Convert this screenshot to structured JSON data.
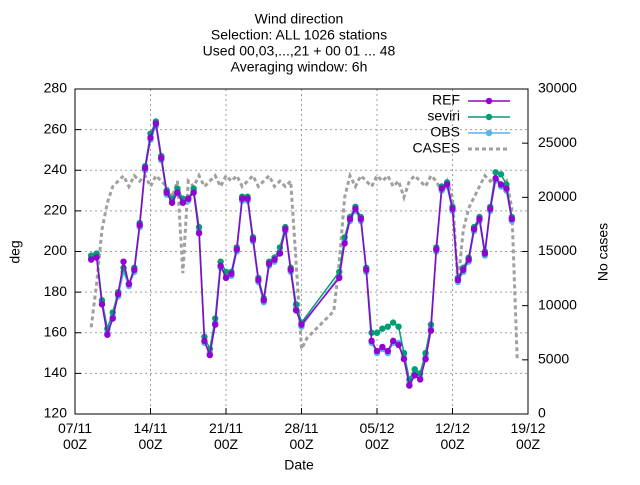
{
  "chart_data": {
    "type": "line",
    "title": [
      "Wind direction",
      "Selection: ALL   1026 stations",
      "Used 00,03,...,21 + 00 01 ... 48",
      "Averaging window:  6h"
    ],
    "xlabel": "Date",
    "ylabel": "deg",
    "y2label": "No cases",
    "xlim": [
      0,
      42
    ],
    "xticks": [
      {
        "value": 0,
        "label": "07/11\n00Z"
      },
      {
        "value": 7,
        "label": "14/11\n00Z"
      },
      {
        "value": 14,
        "label": "21/11\n00Z"
      },
      {
        "value": 21,
        "label": "28/11\n00Z"
      },
      {
        "value": 28,
        "label": "05/12\n00Z"
      },
      {
        "value": 35,
        "label": "12/12\n00Z"
      },
      {
        "value": 42,
        "label": "19/12\n00Z"
      }
    ],
    "ylim": [
      120,
      280
    ],
    "yticks": [
      120,
      140,
      160,
      180,
      200,
      220,
      240,
      260,
      280
    ],
    "y2lim": [
      0,
      30000
    ],
    "y2ticks": [
      0,
      5000,
      10000,
      15000,
      20000,
      25000,
      30000
    ],
    "grid": true,
    "legend": "top-right",
    "series": [
      {
        "name": "REF",
        "color": "#9400d3",
        "markers": true,
        "x": [
          1.5,
          2,
          2.5,
          3,
          3.5,
          4,
          4.5,
          5,
          5.5,
          6,
          6.5,
          7,
          7.5,
          8,
          8.5,
          9,
          9.5,
          10,
          10.5,
          11,
          11.5,
          12,
          12.5,
          13,
          13.5,
          14,
          14.5,
          15,
          15.5,
          16,
          16.5,
          17,
          17.5,
          18,
          18.5,
          19,
          19.5,
          20,
          20.5,
          21,
          24.5,
          25,
          25.5,
          26,
          26.5,
          27,
          27.5,
          28,
          28.5,
          29,
          29.5,
          30,
          30.5,
          31,
          31.5,
          32,
          32.5,
          33,
          33.5,
          34,
          34.5,
          35,
          35.5,
          36,
          36.5,
          37,
          37.5,
          38,
          38.5,
          39,
          39.5,
          40,
          40.5
        ],
        "values": [
          196,
          197,
          174,
          159,
          167,
          179,
          195,
          184,
          191,
          213,
          241,
          256,
          263,
          246,
          229,
          224,
          229,
          224,
          226,
          229,
          209,
          156,
          149,
          164,
          193,
          187,
          189,
          201,
          226,
          226,
          206,
          186,
          176,
          194,
          196,
          199,
          211,
          191,
          171,
          164,
          187,
          204,
          216,
          221,
          216,
          191,
          156,
          151,
          153,
          151,
          156,
          154,
          147,
          134,
          139,
          137,
          147,
          161,
          201,
          231,
          233,
          221,
          186,
          191,
          196,
          211,
          216,
          199,
          221,
          236,
          233,
          231,
          216
        ]
      },
      {
        "name": "seviri",
        "color": "#009e73",
        "markers": true,
        "x": [
          1.5,
          2,
          2.5,
          3,
          3.5,
          4,
          4.5,
          5,
          5.5,
          6,
          6.5,
          7,
          7.5,
          8,
          8.5,
          9,
          9.5,
          10,
          10.5,
          11,
          11.5,
          12,
          12.5,
          13,
          13.5,
          14,
          14.5,
          15,
          15.5,
          16,
          16.5,
          17,
          17.5,
          18,
          18.5,
          19,
          19.5,
          20,
          20.5,
          21,
          24.5,
          25,
          25.5,
          26,
          26.5,
          27,
          27.5,
          28,
          28.5,
          29,
          29.5,
          30,
          30.5,
          31,
          31.5,
          32,
          32.5,
          33,
          33.5,
          34,
          34.5,
          35,
          35.5,
          36,
          36.5,
          37,
          37.5,
          38,
          38.5,
          39,
          39.5,
          40,
          40.5
        ],
        "values": [
          198,
          199,
          176,
          162,
          170,
          180,
          192,
          184,
          192,
          214,
          242,
          258,
          264,
          247,
          230,
          226,
          231,
          226,
          226,
          231,
          212,
          158,
          152,
          167,
          195,
          190,
          190,
          202,
          227,
          227,
          207,
          187,
          177,
          195,
          197,
          202,
          212,
          192,
          174,
          165,
          190,
          207,
          217,
          222,
          217,
          192,
          160,
          160,
          162,
          163,
          165,
          163,
          150,
          137,
          142,
          140,
          150,
          164,
          202,
          232,
          234,
          222,
          187,
          192,
          197,
          212,
          217,
          200,
          222,
          239,
          238,
          233,
          217
        ]
      },
      {
        "name": "OBS",
        "color": "#56b4e9",
        "markers": true,
        "x": [
          1.5,
          2,
          2.5,
          3,
          3.5,
          4,
          4.5,
          5,
          5.5,
          6,
          6.5,
          7,
          7.5,
          8,
          8.5,
          9,
          9.5,
          10,
          10.5,
          11,
          11.5,
          12,
          12.5,
          13,
          13.5,
          14,
          14.5,
          15,
          15.5,
          16,
          16.5,
          17,
          17.5,
          18,
          18.5,
          19,
          19.5,
          20,
          20.5,
          21,
          24.5,
          25,
          25.5,
          26,
          26.5,
          27,
          27.5,
          28,
          28.5,
          29,
          29.5,
          30,
          30.5,
          31,
          31.5,
          32,
          32.5,
          33,
          33.5,
          34,
          34.5,
          35,
          35.5,
          36,
          36.5,
          37,
          37.5,
          38,
          38.5,
          39,
          39.5,
          40,
          40.5
        ],
        "values": [
          197,
          198,
          175,
          160,
          168,
          178,
          190,
          183,
          190,
          212,
          240,
          255,
          262,
          245,
          228,
          225,
          230,
          225,
          225,
          230,
          210,
          155,
          150,
          165,
          192,
          188,
          188,
          200,
          225,
          225,
          205,
          185,
          175,
          193,
          195,
          200,
          210,
          190,
          172,
          163,
          188,
          205,
          215,
          220,
          215,
          190,
          155,
          150,
          152,
          150,
          155,
          155,
          148,
          135,
          140,
          138,
          148,
          162,
          200,
          230,
          232,
          220,
          185,
          190,
          195,
          210,
          215,
          198,
          220,
          235,
          232,
          230,
          215
        ]
      },
      {
        "name": "CASES",
        "color": "#a0a0a0",
        "axis": "y2",
        "dashed": true,
        "x": [
          1.5,
          2,
          2.5,
          3,
          3.5,
          4,
          4.5,
          5,
          5.5,
          6,
          6.5,
          7,
          7.5,
          8,
          8.5,
          9,
          9.5,
          10,
          10.5,
          11,
          11.5,
          12,
          12.5,
          13,
          13.5,
          14,
          14.5,
          15,
          15.5,
          16,
          16.5,
          17,
          17.5,
          18,
          18.5,
          19,
          19.5,
          20,
          20.5,
          21,
          21.5,
          22,
          22.5,
          23,
          23.5,
          24,
          24.5,
          25,
          25.5,
          26,
          26.5,
          27,
          27.5,
          28,
          28.5,
          29,
          29.5,
          30,
          30.5,
          31,
          31.5,
          32,
          32.5,
          33,
          33.5,
          34,
          34.5,
          35,
          35.5,
          36,
          36.5,
          37,
          37.5,
          38,
          38.5,
          39,
          39.5,
          40,
          40.5,
          41
        ],
        "values": [
          8000,
          12000,
          17000,
          19500,
          21000,
          21500,
          22000,
          21000,
          22000,
          21500,
          22000,
          21000,
          22000,
          21500,
          21000,
          20000,
          21500,
          13000,
          21500,
          21000,
          22000,
          21000,
          21500,
          22000,
          21000,
          22000,
          21500,
          22000,
          21000,
          21500,
          22000,
          21000,
          21500,
          22000,
          21000,
          21500,
          21000,
          21500,
          14000,
          6000,
          7000,
          7500,
          8000,
          8500,
          9000,
          9500,
          14000,
          20000,
          22000,
          21000,
          22000,
          21500,
          21000,
          22000,
          21500,
          22000,
          21000,
          21500,
          20000,
          21500,
          22000,
          21500,
          21000,
          22000,
          21500,
          20500,
          21500,
          20000,
          12000,
          17000,
          19000,
          20000,
          21000,
          22000,
          21500,
          22000,
          21000,
          21500,
          19000,
          5000
        ]
      }
    ]
  }
}
